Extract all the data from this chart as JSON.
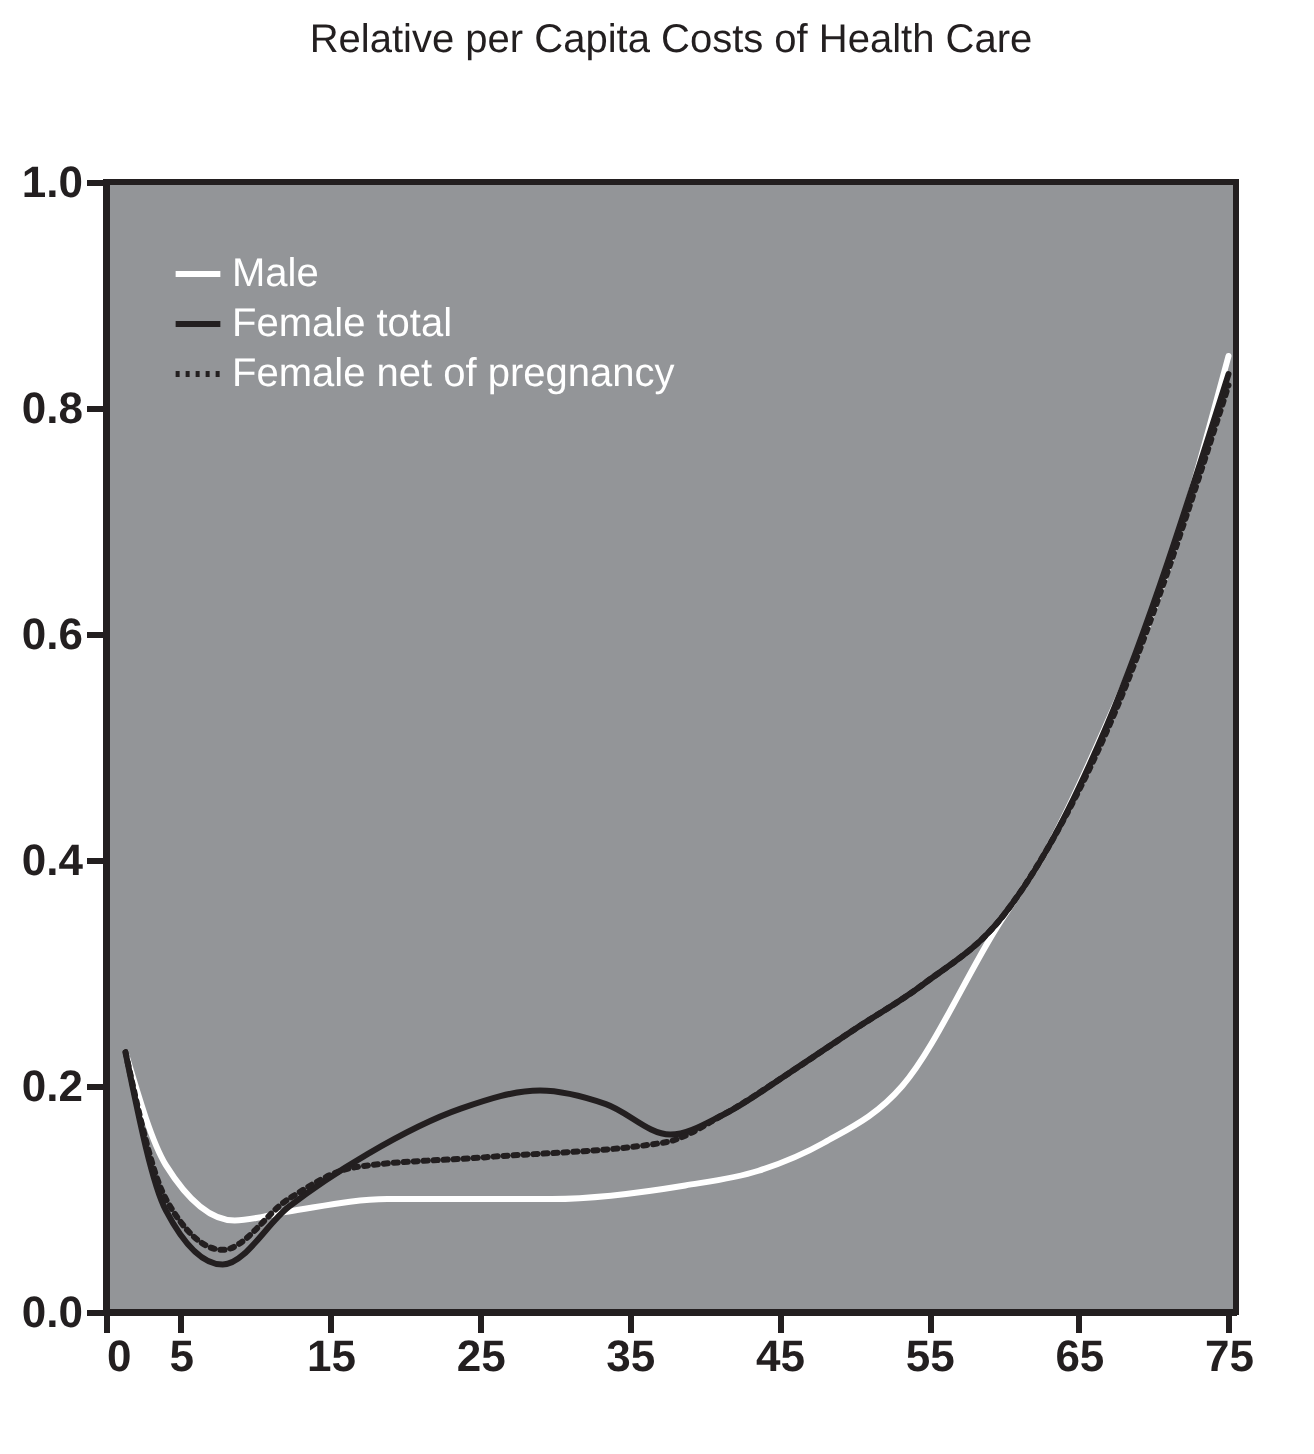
{
  "chart_data": {
    "type": "line",
    "title": "Relative per Capita Costs of Health Care",
    "xlim": [
      0,
      75.5
    ],
    "xticks": [
      0,
      5,
      15,
      25,
      35,
      45,
      55,
      65,
      75
    ],
    "ylim": [
      0,
      1
    ],
    "yticks": [
      {
        "value": 0,
        "label": "0.0"
      },
      0.2,
      0.4,
      0.6,
      0.8,
      {
        "value": 1,
        "label": "1.0"
      }
    ],
    "grid": false,
    "legend": "top left",
    "series": [
      {
        "name": "Male",
        "color": "#ffffff",
        "line_style": "solid",
        "x": [
          1.3,
          4,
          8.6,
          12.2,
          18.8,
          29.8,
          38.7,
          43.6,
          48,
          53.2,
          59.5,
          62.9,
          66.5,
          70.5,
          75
        ],
        "values": [
          0.23,
          0.13,
          0.081,
          0.089,
          0.1,
          0.1,
          0.112,
          0.125,
          0.15,
          0.2,
          0.34,
          0.41,
          0.51,
          0.64,
          0.846
        ]
      },
      {
        "name": "Female total",
        "color": "#231f20",
        "line_style": "solid",
        "x": [
          1.3,
          4,
          7.8,
          12.2,
          17.5,
          23.7,
          29,
          33.4,
          37.7,
          41.3,
          45.7,
          50,
          54.6,
          59.9,
          62.9,
          66.9,
          75
        ],
        "values": [
          0.23,
          0.09,
          0.042,
          0.093,
          0.14,
          0.18,
          0.196,
          0.184,
          0.157,
          0.175,
          0.212,
          0.25,
          0.29,
          0.35,
          0.41,
          0.52,
          0.83
        ]
      },
      {
        "name": "Female net of pregnancy",
        "color": "#231f20",
        "line_style": "dotted",
        "x": [
          1.3,
          4,
          7.8,
          12.2,
          16.6,
          25.4,
          37.3,
          41.3,
          45.7,
          50,
          54.6,
          59.9,
          62.9,
          66.9,
          75
        ],
        "values": [
          0.23,
          0.1,
          0.055,
          0.1,
          0.128,
          0.137,
          0.15,
          0.175,
          0.212,
          0.25,
          0.29,
          0.35,
          0.41,
          0.515,
          0.82
        ]
      }
    ]
  }
}
